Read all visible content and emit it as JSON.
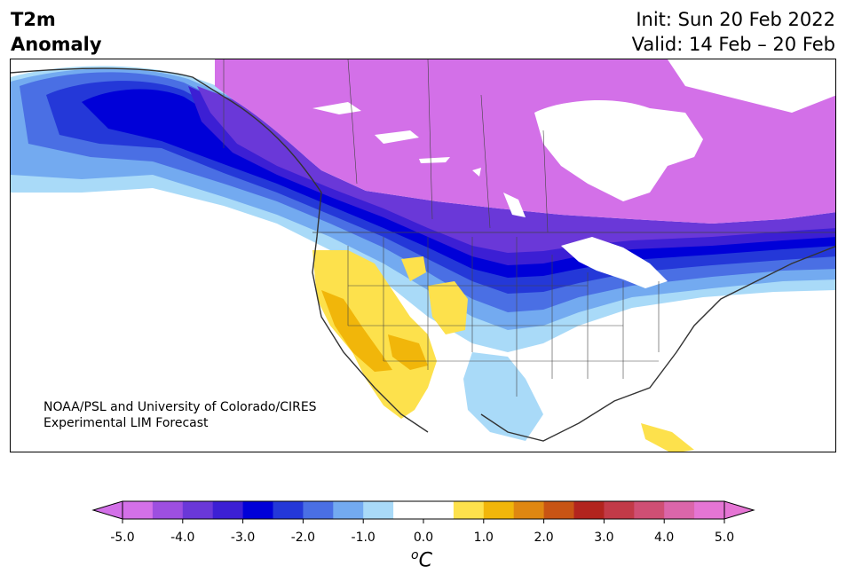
{
  "title": {
    "line1": "T2m",
    "line2": "Anomaly"
  },
  "init": "Init: Sun 20 Feb 2022",
  "valid": "Valid: 14 Feb – 20 Feb",
  "credit": {
    "line1": "NOAA/PSL and University of Colorado/CIRES",
    "line2": "Experimental LIM Forecast"
  },
  "colorbar": {
    "ticks": [
      "-5.0",
      "-4.0",
      "-3.0",
      "-2.0",
      "-1.0",
      "0.0",
      "1.0",
      "2.0",
      "3.0",
      "4.0",
      "5.0"
    ],
    "colors": [
      "#d370e8",
      "#9d4fe0",
      "#6a38d8",
      "#3c1fd4",
      "#0000d8",
      "#2438d8",
      "#4a6fe4",
      "#73aaf0",
      "#a9daf8",
      "#ffffff",
      "#ffffff",
      "#fde14c",
      "#f1b60a",
      "#df8711",
      "#c85414",
      "#b2241e",
      "#c23a48",
      "#cf4f74",
      "#db66aa",
      "#e575d4"
    ],
    "under_color": "#d370e8",
    "over_color": "#e575d4",
    "units_base": "C",
    "units_sup": "o"
  },
  "map": {
    "region": "North America",
    "variable": "2 m temperature anomaly"
  }
}
